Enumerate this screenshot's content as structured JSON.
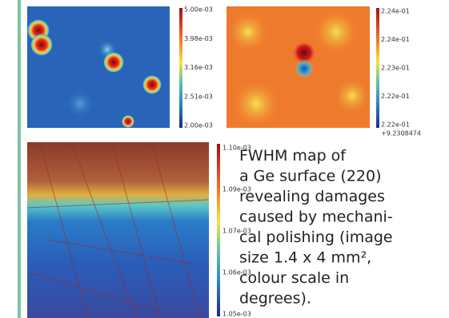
{
  "figures": [
    {
      "colorbar": [
        "5.00e-03",
        "3.98e-03",
        "3.16e-03",
        "2.51e-03",
        "2.00e-03"
      ]
    },
    {
      "colorbar": [
        "2.24e-01",
        "2.24e-01",
        "2.23e-01",
        "2.22e-01",
        "2.22e-01"
      ],
      "colorbar_offset": "+9.2308474"
    },
    {
      "colorbar": [
        "1.10e-03",
        "1.09e-03",
        "1.07e-03",
        "1.06e-03",
        "1.05e-03"
      ]
    }
  ],
  "caption": {
    "lines": [
      "FWHM map of",
      "a Ge surface (220)",
      "revealing damages",
      "caused by mechani-",
      "cal polishing (image",
      "size 1.4 x 4 mm²,",
      "colour scale in",
      "degrees)."
    ]
  }
}
